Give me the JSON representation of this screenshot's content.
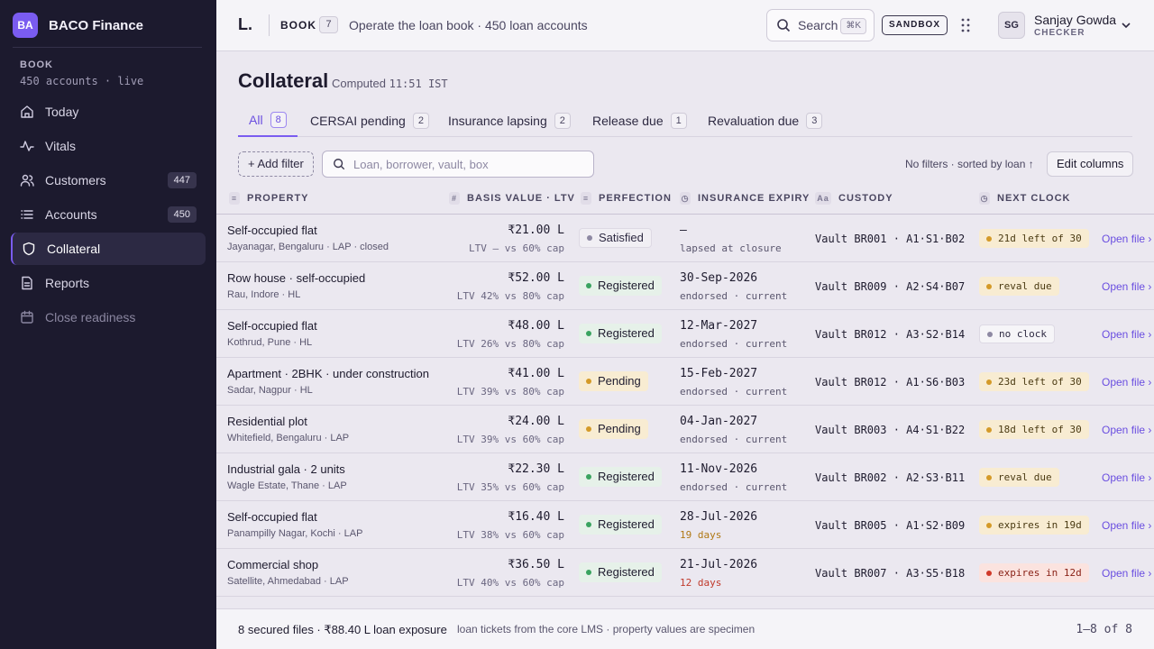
{
  "brand": {
    "initials": "BA",
    "name": "BACO Finance"
  },
  "book": {
    "label": "BOOK",
    "sub": "450 accounts · live"
  },
  "nav": [
    {
      "label": "Today",
      "icon": "home-icon"
    },
    {
      "label": "Vitals",
      "icon": "pulse-icon"
    },
    {
      "label": "Customers",
      "icon": "users-icon",
      "count": "447"
    },
    {
      "label": "Accounts",
      "icon": "list-icon",
      "count": "450"
    },
    {
      "label": "Collateral",
      "icon": "shield-icon",
      "active": true
    },
    {
      "label": "Reports",
      "icon": "document-icon"
    },
    {
      "label": "Close readiness",
      "icon": "calendar-icon",
      "dim": true
    }
  ],
  "topbar": {
    "logo": "L.",
    "book": "BOOK",
    "book_count": "7",
    "description": "Operate the loan book · 450 loan accounts",
    "search_label": "Search",
    "search_kbd": "⌘K",
    "sandbox": "SANDBOX",
    "user_initials": "SG",
    "user_name": "Sanjay Gowda",
    "user_role": "CHECKER"
  },
  "page": {
    "title": "Collateral",
    "computed_prefix": "Computed",
    "computed_time": "11:51 IST"
  },
  "tabs": [
    {
      "label": "All",
      "count": "8",
      "active": true
    },
    {
      "label": "CERSAI pending",
      "count": "2"
    },
    {
      "label": "Insurance lapsing",
      "count": "2"
    },
    {
      "label": "Release due",
      "count": "1"
    },
    {
      "label": "Revaluation due",
      "count": "3"
    }
  ],
  "filters": {
    "add_filter": "+ Add filter",
    "search_placeholder": "Loan, borrower, vault, box",
    "sort_note": "No filters · sorted by loan ↑",
    "edit_columns": "Edit columns"
  },
  "columns": {
    "property": "PROPERTY",
    "basis": "BASIS VALUE · LTV",
    "perfection": "PERFECTION",
    "insurance": "INSURANCE EXPIRY",
    "custody": "CUSTODY",
    "clock": "NEXT CLOCK"
  },
  "rows": [
    {
      "title": "Self-occupied flat",
      "sub": "Jayanagar, Bengaluru · LAP · closed",
      "value": "₹21.00 L",
      "ltv": "LTV — vs 60% cap",
      "perfection": "Satisfied",
      "perf_kind": "sat",
      "ins_date": "—",
      "ins_note": "lapsed at closure",
      "ins_kind": "",
      "custody": "Vault BR001 · A1·S1·B02",
      "clock": "21d left of 30",
      "clock_kind": "amber",
      "link": "Open file ›"
    },
    {
      "title": "Row house · self-occupied",
      "sub": "Rau, Indore · HL",
      "value": "₹52.00 L",
      "ltv": "LTV 42% vs 80% cap",
      "perfection": "Registered",
      "perf_kind": "reg",
      "ins_date": "30-Sep-2026",
      "ins_note": "endorsed · current",
      "ins_kind": "",
      "custody": "Vault BR009 · A2·S4·B07",
      "clock": "reval due",
      "clock_kind": "amber",
      "link": "Open file ›"
    },
    {
      "title": "Self-occupied flat",
      "sub": "Kothrud, Pune · HL",
      "value": "₹48.00 L",
      "ltv": "LTV 26% vs 80% cap",
      "perfection": "Registered",
      "perf_kind": "reg",
      "ins_date": "12-Mar-2027",
      "ins_note": "endorsed · current",
      "ins_kind": "",
      "custody": "Vault BR012 · A3·S2·B14",
      "clock": "no clock",
      "clock_kind": "grey",
      "link": "Open file ›"
    },
    {
      "title": "Apartment · 2BHK · under construction",
      "sub": "Sadar, Nagpur · HL",
      "value": "₹41.00 L",
      "ltv": "LTV 39% vs 80% cap",
      "perfection": "Pending",
      "perf_kind": "pend",
      "ins_date": "15-Feb-2027",
      "ins_note": "endorsed · current",
      "ins_kind": "",
      "custody": "Vault BR012 · A1·S6·B03",
      "clock": "23d left of 30",
      "clock_kind": "amber",
      "link": "Open file ›"
    },
    {
      "title": "Residential plot",
      "sub": "Whitefield, Bengaluru · LAP",
      "value": "₹24.00 L",
      "ltv": "LTV 39% vs 60% cap",
      "perfection": "Pending",
      "perf_kind": "pend",
      "ins_date": "04-Jan-2027",
      "ins_note": "endorsed · current",
      "ins_kind": "",
      "custody": "Vault BR003 · A4·S1·B22",
      "clock": "18d left of 30",
      "clock_kind": "amber",
      "link": "Open file ›"
    },
    {
      "title": "Industrial gala · 2 units",
      "sub": "Wagle Estate, Thane · LAP",
      "value": "₹22.30 L",
      "ltv": "LTV 35% vs 60% cap",
      "perfection": "Registered",
      "perf_kind": "reg",
      "ins_date": "11-Nov-2026",
      "ins_note": "endorsed · current",
      "ins_kind": "",
      "custody": "Vault BR002 · A2·S3·B11",
      "clock": "reval due",
      "clock_kind": "amber",
      "link": "Open file ›"
    },
    {
      "title": "Self-occupied flat",
      "sub": "Panampilly Nagar, Kochi · LAP",
      "value": "₹16.40 L",
      "ltv": "LTV 38% vs 60% cap",
      "perfection": "Registered",
      "perf_kind": "reg",
      "ins_date": "28-Jul-2026",
      "ins_note": "19 days",
      "ins_kind": "warn",
      "custody": "Vault BR005 · A1·S2·B09",
      "clock": "expires in 19d",
      "clock_kind": "amber",
      "link": "Open file ›"
    },
    {
      "title": "Commercial shop",
      "sub": "Satellite, Ahmedabad · LAP",
      "value": "₹36.50 L",
      "ltv": "LTV 40% vs 60% cap",
      "perfection": "Registered",
      "perf_kind": "reg",
      "ins_date": "21-Jul-2026",
      "ins_note": "12 days",
      "ins_kind": "danger",
      "custody": "Vault BR007 · A3·S5·B18",
      "clock": "expires in 12d",
      "clock_kind": "red",
      "link": "Open file ›"
    }
  ],
  "footer": {
    "summary": "8 secured files · ₹88.40 L loan exposure",
    "note": "loan tickets from the core LMS · property values are specimen",
    "range": "1–8 of 8"
  }
}
